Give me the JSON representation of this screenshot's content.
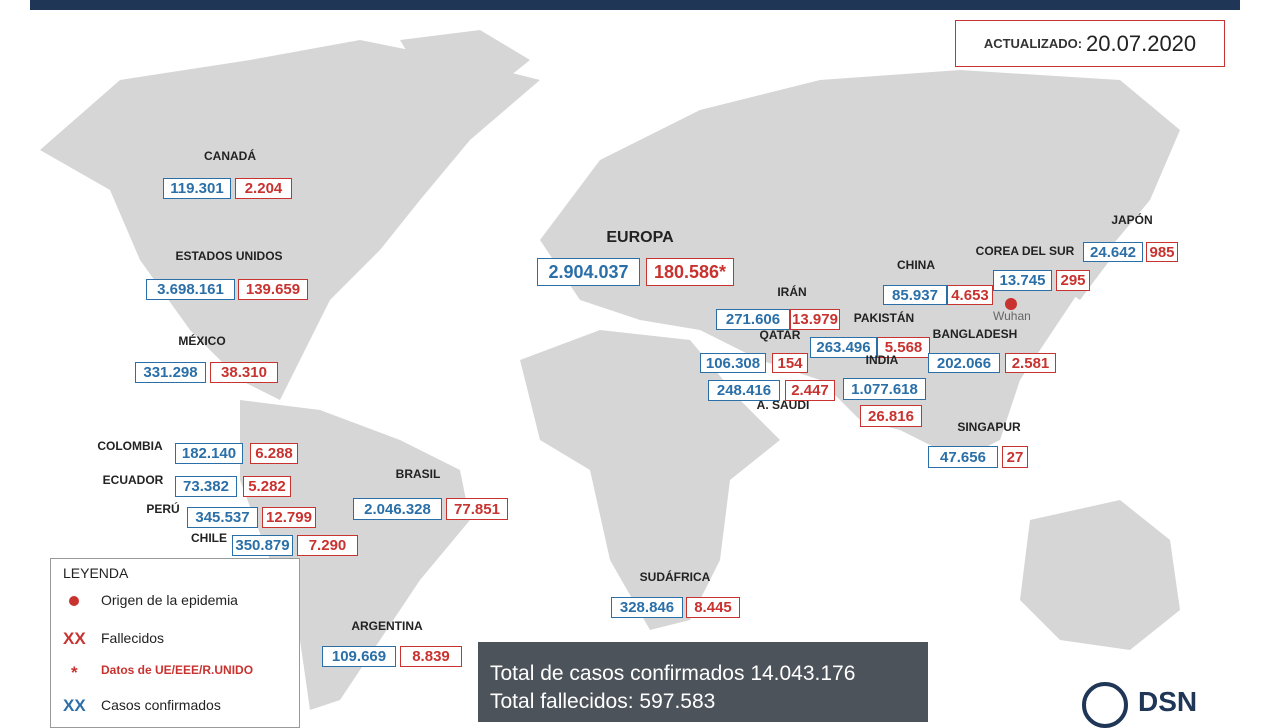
{
  "header": {
    "updated_label": "ACTUALIZADO:",
    "date": "20.07.2020"
  },
  "countries": [
    {
      "name": "CANADÁ",
      "cases": "119.301",
      "deaths": "2.204"
    },
    {
      "name": "ESTADOS UNIDOS",
      "cases": "3.698.161",
      "deaths": "139.659"
    },
    {
      "name": "MÉXICO",
      "cases": "331.298",
      "deaths": "38.310"
    },
    {
      "name": "COLOMBIA",
      "cases": "182.140",
      "deaths": "6.288"
    },
    {
      "name": "ECUADOR",
      "cases": "73.382",
      "deaths": "5.282"
    },
    {
      "name": "PERÚ",
      "cases": "345.537",
      "deaths": "12.799"
    },
    {
      "name": "CHILE",
      "cases": "350.879",
      "deaths": "7.290"
    },
    {
      "name": "BRASIL",
      "cases": "2.046.328",
      "deaths": "77.851"
    },
    {
      "name": "ARGENTINA",
      "cases": "109.669",
      "deaths": "8.839"
    },
    {
      "name": "EUROPA",
      "cases": "2.904.037",
      "deaths": "180.586*"
    },
    {
      "name": "IRÁN",
      "cases": "271.606",
      "deaths": "13.979"
    },
    {
      "name": "PAKISTÁN",
      "cases": "263.496",
      "deaths": "5.568"
    },
    {
      "name": "QATAR",
      "cases": "106.308",
      "deaths": "154"
    },
    {
      "name": "BANGLADESH",
      "cases": "202.066",
      "deaths": "2.581"
    },
    {
      "name": "INDIA",
      "cases": "1.077.618",
      "deaths": "26.816"
    },
    {
      "name": "A. SAUDÍ",
      "cases": "248.416",
      "deaths": "2.447"
    },
    {
      "name": "CHINA",
      "cases": "85.937",
      "deaths": "4.653"
    },
    {
      "name": "COREA DEL SUR",
      "cases": "13.745",
      "deaths": "295"
    },
    {
      "name": "JAPÓN",
      "cases": "24.642",
      "deaths": "985"
    },
    {
      "name": "SINGAPUR",
      "cases": "47.656",
      "deaths": "27"
    },
    {
      "name": "SUDÁFRICA",
      "cases": "328.846",
      "deaths": "8.445"
    }
  ],
  "origin_label": "Wuhan",
  "legend": {
    "title": "LEYENDA",
    "items": [
      {
        "label": "Origen de la epidemia"
      },
      {
        "marker": "XX",
        "label": "Fallecidos"
      },
      {
        "marker": "*",
        "label": "Datos de UE/EEE/R.UNIDO"
      },
      {
        "marker": "XX",
        "label": "Casos confirmados"
      }
    ]
  },
  "totals": {
    "cases_label": "Total de casos confirmados",
    "cases": "14.043.176",
    "deaths_label": "Total fallecidos:",
    "deaths": "597.583"
  },
  "logo": "DSN"
}
